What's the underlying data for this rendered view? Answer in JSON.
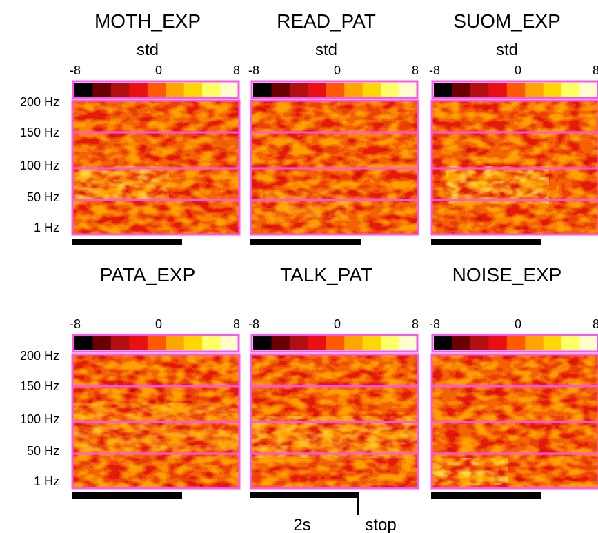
{
  "figure": {
    "unit_label": "std",
    "colorbar_colors": [
      "#000000",
      "#6b0000",
      "#b01010",
      "#e81010",
      "#ff5a00",
      "#ffa500",
      "#ffd700",
      "#ffff66",
      "#ffffcc"
    ],
    "frame_color": "#ff55ee",
    "scale_bar_label": "2s",
    "stop_label": "stop"
  },
  "chart_data": [
    {
      "type": "heatmap",
      "title": "MOTH_EXP",
      "ylabel": "",
      "xlabel": "",
      "y_ticks": [
        "200 Hz",
        "150 Hz",
        "100 Hz",
        "50 Hz",
        "1 Hz"
      ],
      "colorbar": {
        "label": "std",
        "ticks": [
          "-8",
          "0",
          "8"
        ],
        "range": [
          -8,
          8
        ]
      },
      "hot_band": "100 Hz – 50 Hz, early"
    },
    {
      "type": "heatmap",
      "title": "READ_PAT",
      "ylabel": "",
      "xlabel": "",
      "y_ticks": [],
      "colorbar": {
        "label": "std",
        "ticks": [
          "-8",
          "0",
          "8"
        ],
        "range": [
          -8,
          8
        ]
      },
      "hot_band": "diffuse"
    },
    {
      "type": "heatmap",
      "title": "SUOM_EXP",
      "ylabel": "",
      "xlabel": "",
      "y_ticks": [],
      "colorbar": {
        "label": "std",
        "ticks": [
          "-8",
          "0",
          "8"
        ],
        "range": [
          -8,
          8
        ]
      },
      "hot_band": "100 Hz – 50 Hz, early"
    },
    {
      "type": "heatmap",
      "title": "PATA_EXP",
      "ylabel": "",
      "xlabel": "",
      "y_ticks": [
        "200 Hz",
        "150 Hz",
        "100 Hz",
        "50 Hz",
        "1 Hz"
      ],
      "colorbar": {
        "label": "",
        "ticks": [
          "-8",
          "0",
          "8"
        ],
        "range": [
          -8,
          8
        ]
      },
      "hot_band": "diffuse"
    },
    {
      "type": "heatmap",
      "title": "TALK_PAT",
      "ylabel": "",
      "xlabel": "",
      "y_ticks": [],
      "colorbar": {
        "label": "",
        "ticks": [
          "-8",
          "0",
          "8"
        ],
        "range": [
          -8,
          8
        ]
      },
      "hot_band": "100 Hz – 50 Hz"
    },
    {
      "type": "heatmap",
      "title": "NOISE_EXP",
      "ylabel": "",
      "xlabel": "",
      "y_ticks": [],
      "colorbar": {
        "label": "",
        "ticks": [
          "-8",
          "0",
          "8"
        ],
        "range": [
          -8,
          8
        ]
      },
      "hot_band": "1 Hz – 50 Hz, early"
    }
  ]
}
